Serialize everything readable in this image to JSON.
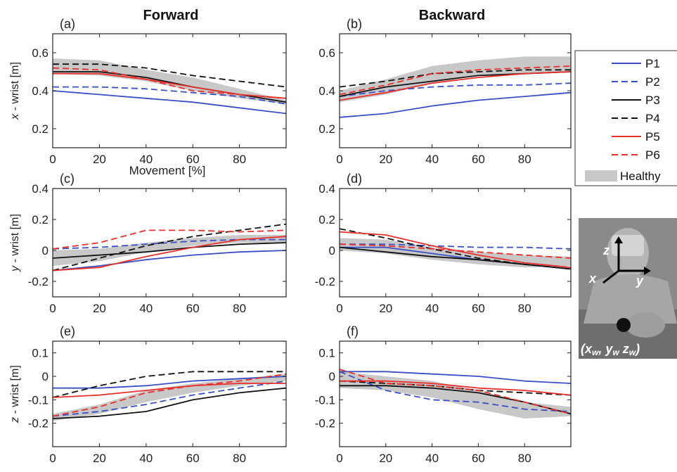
{
  "columns": {
    "left_title": "Forward",
    "right_title": "Backward"
  },
  "legend": {
    "entries": [
      {
        "label": "P1",
        "color": "#3a4fc4",
        "dash": false
      },
      {
        "label": "P2",
        "color": "#3a4fc4",
        "dash": true
      },
      {
        "label": "P3",
        "color": "#111111",
        "dash": false
      },
      {
        "label": "P4",
        "color": "#111111",
        "dash": true
      },
      {
        "label": "P5",
        "color": "#e8302b",
        "dash": false
      },
      {
        "label": "P6",
        "color": "#e8302b",
        "dash": true
      }
    ],
    "healthy_label": "Healthy",
    "healthy_color": "#c8c8c8"
  },
  "photo": {
    "axis_z": "z",
    "axis_x": "x",
    "axis_y": "y",
    "caption": "(x",
    "caption_parts": [
      "(x",
      "w",
      ", y",
      "w",
      " z",
      "w",
      ")"
    ]
  },
  "chart_data": [
    {
      "id": "a",
      "panel_label": "(a)",
      "type": "line",
      "ylabel": "x - wrist [m]",
      "xlabel": "Movement [%]",
      "xlim": [
        0,
        100
      ],
      "ylim": [
        0.1,
        0.7
      ],
      "yticks": [
        0.2,
        0.4,
        0.6
      ],
      "ytick_labels": [
        "0.2",
        "0.4",
        "0.6"
      ],
      "xticks": [
        0,
        20,
        40,
        60,
        80
      ],
      "xtick_labels": [
        "0",
        "20",
        "40",
        "60",
        "80"
      ],
      "x": [
        0,
        20,
        40,
        60,
        80,
        100
      ],
      "healthy_band": {
        "upper": [
          0.57,
          0.56,
          0.51,
          0.47,
          0.41,
          0.35
        ],
        "lower": [
          0.49,
          0.48,
          0.45,
          0.4,
          0.36,
          0.33
        ]
      },
      "series": [
        {
          "name": "P1",
          "values": [
            0.4,
            0.38,
            0.36,
            0.34,
            0.31,
            0.28
          ]
        },
        {
          "name": "P2",
          "values": [
            0.42,
            0.42,
            0.41,
            0.39,
            0.37,
            0.33
          ]
        },
        {
          "name": "P3",
          "values": [
            0.5,
            0.5,
            0.47,
            0.42,
            0.38,
            0.34
          ]
        },
        {
          "name": "P4",
          "values": [
            0.54,
            0.54,
            0.52,
            0.48,
            0.45,
            0.42
          ]
        },
        {
          "name": "P5",
          "values": [
            0.49,
            0.49,
            0.46,
            0.42,
            0.38,
            0.36
          ]
        },
        {
          "name": "P6",
          "values": [
            0.52,
            0.51,
            0.46,
            0.4,
            0.38,
            0.36
          ]
        }
      ]
    },
    {
      "id": "b",
      "panel_label": "(b)",
      "type": "line",
      "ylabel": "",
      "xlabel": "",
      "xlim": [
        0,
        100
      ],
      "ylim": [
        0.1,
        0.7
      ],
      "yticks": [
        0.2,
        0.4,
        0.6
      ],
      "ytick_labels": [
        "0.2",
        "0.4",
        "0.6"
      ],
      "xticks": [
        0,
        20,
        40,
        60,
        80
      ],
      "xtick_labels": [
        "0",
        "20",
        "40",
        "60",
        "80"
      ],
      "x": [
        0,
        20,
        40,
        60,
        80,
        100
      ],
      "healthy_band": {
        "upper": [
          0.4,
          0.46,
          0.53,
          0.56,
          0.58,
          0.58
        ],
        "lower": [
          0.34,
          0.38,
          0.44,
          0.48,
          0.49,
          0.5
        ]
      },
      "series": [
        {
          "name": "P1",
          "values": [
            0.26,
            0.28,
            0.32,
            0.35,
            0.37,
            0.39
          ]
        },
        {
          "name": "P2",
          "values": [
            0.37,
            0.4,
            0.42,
            0.43,
            0.43,
            0.44
          ]
        },
        {
          "name": "P3",
          "values": [
            0.37,
            0.42,
            0.45,
            0.48,
            0.49,
            0.5
          ]
        },
        {
          "name": "P4",
          "values": [
            0.42,
            0.45,
            0.49,
            0.5,
            0.51,
            0.51
          ]
        },
        {
          "name": "P5",
          "values": [
            0.35,
            0.39,
            0.44,
            0.47,
            0.49,
            0.5
          ]
        },
        {
          "name": "P6",
          "values": [
            0.38,
            0.43,
            0.49,
            0.51,
            0.52,
            0.53
          ]
        }
      ]
    },
    {
      "id": "c",
      "panel_label": "(c)",
      "type": "line",
      "ylabel": "y - wrist [m]",
      "xlabel": "",
      "xlim": [
        0,
        100
      ],
      "ylim": [
        -0.3,
        0.4
      ],
      "yticks": [
        -0.2,
        0,
        0.2,
        0.4
      ],
      "ytick_labels": [
        "-0.2",
        "0",
        "0.2",
        "0.4"
      ],
      "xticks": [
        0,
        20,
        40,
        60,
        80
      ],
      "xtick_labels": [
        "0",
        "20",
        "40",
        "60",
        "80"
      ],
      "x": [
        0,
        20,
        40,
        60,
        80,
        100
      ],
      "healthy_band": {
        "upper": [
          0.0,
          0.01,
          0.05,
          0.08,
          0.1,
          0.1
        ],
        "lower": [
          -0.1,
          -0.07,
          -0.01,
          0.03,
          0.05,
          0.05
        ]
      },
      "series": [
        {
          "name": "P1",
          "values": [
            -0.13,
            -0.1,
            -0.06,
            -0.03,
            -0.01,
            0.0
          ]
        },
        {
          "name": "P2",
          "values": [
            0.01,
            0.02,
            0.04,
            0.06,
            0.07,
            0.07
          ]
        },
        {
          "name": "P3",
          "values": [
            -0.05,
            -0.03,
            -0.01,
            0.02,
            0.04,
            0.05
          ]
        },
        {
          "name": "P4",
          "values": [
            -0.13,
            -0.05,
            0.03,
            0.09,
            0.13,
            0.17
          ]
        },
        {
          "name": "P5",
          "values": [
            -0.13,
            -0.11,
            -0.04,
            0.02,
            0.07,
            0.09
          ]
        },
        {
          "name": "P6",
          "values": [
            0.01,
            0.05,
            0.13,
            0.13,
            0.12,
            0.13
          ]
        }
      ]
    },
    {
      "id": "d",
      "panel_label": "(d)",
      "type": "line",
      "ylabel": "",
      "xlabel": "",
      "xlim": [
        0,
        100
      ],
      "ylim": [
        -0.3,
        0.4
      ],
      "yticks": [
        -0.2,
        0,
        0.2,
        0.4
      ],
      "ytick_labels": [
        "-0.2",
        "0",
        "0.2",
        "0.4"
      ],
      "xticks": [
        0,
        20,
        40,
        60,
        80
      ],
      "xtick_labels": [
        "0",
        "20",
        "40",
        "60",
        "80"
      ],
      "x": [
        0,
        20,
        40,
        60,
        80,
        100
      ],
      "healthy_band": {
        "upper": [
          0.08,
          0.07,
          0.02,
          -0.01,
          -0.03,
          -0.04
        ],
        "lower": [
          0.0,
          -0.02,
          -0.06,
          -0.09,
          -0.11,
          -0.1
        ]
      },
      "series": [
        {
          "name": "P1",
          "values": [
            0.02,
            0.02,
            -0.02,
            -0.06,
            -0.09,
            -0.12
          ]
        },
        {
          "name": "P2",
          "values": [
            0.04,
            0.04,
            0.03,
            0.02,
            0.02,
            0.01
          ]
        },
        {
          "name": "P3",
          "values": [
            0.02,
            -0.01,
            -0.04,
            -0.06,
            -0.09,
            -0.12
          ]
        },
        {
          "name": "P4",
          "values": [
            0.14,
            0.08,
            0.01,
            -0.05,
            -0.09,
            -0.12
          ]
        },
        {
          "name": "P5",
          "values": [
            0.12,
            0.1,
            0.03,
            -0.03,
            -0.08,
            -0.11
          ]
        },
        {
          "name": "P6",
          "values": [
            0.04,
            0.03,
            0.01,
            -0.01,
            -0.03,
            -0.05
          ]
        }
      ]
    },
    {
      "id": "e",
      "panel_label": "(e)",
      "type": "line",
      "ylabel": "z - wrist [m]",
      "xlabel": "",
      "xlim": [
        0,
        100
      ],
      "ylim": [
        -0.3,
        0.15
      ],
      "yticks": [
        -0.2,
        -0.1,
        0,
        0.1
      ],
      "ytick_labels": [
        "-0.2",
        "-0.1",
        "0",
        "0.1"
      ],
      "xticks": [
        0,
        20,
        40,
        60,
        80
      ],
      "xtick_labels": [
        "0",
        "20",
        "40",
        "60",
        "80"
      ],
      "x": [
        0,
        20,
        40,
        60,
        80,
        100
      ],
      "healthy_band": {
        "upper": [
          -0.16,
          -0.12,
          -0.06,
          -0.03,
          -0.01,
          0.01
        ],
        "lower": [
          -0.19,
          -0.16,
          -0.11,
          -0.07,
          -0.04,
          -0.02
        ]
      },
      "series": [
        {
          "name": "P1",
          "values": [
            -0.05,
            -0.05,
            -0.04,
            -0.02,
            -0.01,
            0.0
          ]
        },
        {
          "name": "P2",
          "values": [
            -0.17,
            -0.15,
            -0.12,
            -0.08,
            -0.05,
            -0.02
          ]
        },
        {
          "name": "P3",
          "values": [
            -0.18,
            -0.17,
            -0.15,
            -0.1,
            -0.07,
            -0.05
          ]
        },
        {
          "name": "P4",
          "values": [
            -0.09,
            -0.04,
            0.0,
            0.02,
            0.02,
            0.02
          ]
        },
        {
          "name": "P5",
          "values": [
            -0.09,
            -0.08,
            -0.06,
            -0.04,
            -0.03,
            -0.03
          ]
        },
        {
          "name": "P6",
          "values": [
            -0.17,
            -0.13,
            -0.07,
            -0.04,
            -0.02,
            0.01
          ]
        }
      ]
    },
    {
      "id": "f",
      "panel_label": "(f)",
      "type": "line",
      "ylabel": "",
      "xlabel": "",
      "xlim": [
        0,
        100
      ],
      "ylim": [
        -0.3,
        0.15
      ],
      "yticks": [
        -0.2,
        -0.1,
        0,
        0.1
      ],
      "ytick_labels": [
        "-0.2",
        "-0.1",
        "0",
        "0.1"
      ],
      "xticks": [
        0,
        20,
        40,
        60,
        80
      ],
      "xtick_labels": [
        "0",
        "20",
        "40",
        "60",
        "80"
      ],
      "x": [
        0,
        20,
        40,
        60,
        80,
        100
      ],
      "healthy_band": {
        "upper": [
          0.02,
          0.0,
          -0.02,
          -0.06,
          -0.11,
          -0.13
        ],
        "lower": [
          -0.05,
          -0.06,
          -0.09,
          -0.14,
          -0.18,
          -0.17
        ]
      },
      "series": [
        {
          "name": "P1",
          "values": [
            0.02,
            0.02,
            0.01,
            0.0,
            -0.02,
            -0.03
          ]
        },
        {
          "name": "P2",
          "values": [
            0.02,
            -0.06,
            -0.1,
            -0.11,
            -0.14,
            -0.15
          ]
        },
        {
          "name": "P3",
          "values": [
            -0.04,
            -0.04,
            -0.05,
            -0.07,
            -0.11,
            -0.16
          ]
        },
        {
          "name": "P4",
          "values": [
            -0.02,
            -0.03,
            -0.04,
            -0.06,
            -0.07,
            -0.08
          ]
        },
        {
          "name": "P5",
          "values": [
            -0.02,
            -0.02,
            -0.03,
            -0.05,
            -0.06,
            -0.08
          ]
        },
        {
          "name": "P6",
          "values": [
            0.03,
            -0.03,
            -0.04,
            -0.06,
            -0.11,
            -0.16
          ]
        }
      ]
    }
  ]
}
